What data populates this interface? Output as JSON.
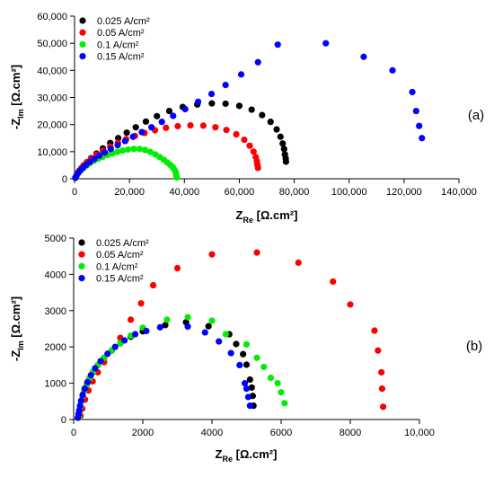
{
  "chart_data": [
    {
      "type": "scatter",
      "panel_label": "(a)",
      "xlabel": "Z",
      "xlabel_sub": "Re",
      "xlabel_tail": " [Ω.cm²]",
      "ylabel_prefix": "-Z",
      "ylabel_sub": "Im",
      "ylabel_tail": " [Ω.cm²]",
      "xlim": [
        0,
        140000
      ],
      "ylim": [
        0,
        60000
      ],
      "xticks": [
        0,
        20000,
        40000,
        60000,
        80000,
        100000,
        120000,
        140000
      ],
      "yticks": [
        0,
        10000,
        20000,
        30000,
        40000,
        50000,
        60000
      ],
      "xtick_labels": [
        "0",
        "20,000",
        "40,000",
        "60,000",
        "80,000",
        "100,000",
        "120,000",
        "140,000"
      ],
      "ytick_labels": [
        "0",
        "10,000",
        "20,000",
        "30,000",
        "40,000",
        "50,000",
        "60,000"
      ],
      "legend_position": "top-left",
      "series": [
        {
          "name": "0.025 A/cm²",
          "color": "#000000",
          "points": [
            [
              300,
              300
            ],
            [
              600,
              1000
            ],
            [
              1000,
              1800
            ],
            [
              1600,
              2800
            ],
            [
              2400,
              3800
            ],
            [
              3300,
              4900
            ],
            [
              4500,
              6100
            ],
            [
              6000,
              7600
            ],
            [
              8000,
              9300
            ],
            [
              10300,
              11200
            ],
            [
              13000,
              13200
            ],
            [
              15900,
              15000
            ],
            [
              19000,
              17000
            ],
            [
              22300,
              19000
            ],
            [
              26000,
              21100
            ],
            [
              30000,
              23100
            ],
            [
              34500,
              25000
            ],
            [
              39400,
              26500
            ],
            [
              44700,
              27400
            ],
            [
              50000,
              27800
            ],
            [
              55000,
              27700
            ],
            [
              60000,
              26900
            ],
            [
              64500,
              25500
            ],
            [
              68300,
              23500
            ],
            [
              71400,
              21000
            ],
            [
              73600,
              18200
            ],
            [
              75000,
              15500
            ],
            [
              75800,
              13000
            ],
            [
              76300,
              11000
            ],
            [
              76600,
              9000
            ],
            [
              76900,
              7500
            ],
            [
              77000,
              6300
            ]
          ]
        },
        {
          "name": "0.05 A/cm²",
          "color": "#ff0000",
          "points": [
            [
              300,
              300
            ],
            [
              600,
              1000
            ],
            [
              1000,
              1800
            ],
            [
              1600,
              2800
            ],
            [
              2400,
              3800
            ],
            [
              3300,
              4900
            ],
            [
              4500,
              6100
            ],
            [
              6000,
              7400
            ],
            [
              8000,
              8900
            ],
            [
              10300,
              10400
            ],
            [
              13000,
              11900
            ],
            [
              15800,
              13300
            ],
            [
              18800,
              14600
            ],
            [
              22000,
              15800
            ],
            [
              25500,
              16900
            ],
            [
              29300,
              17900
            ],
            [
              33300,
              18800
            ],
            [
              37600,
              19400
            ],
            [
              42200,
              19700
            ],
            [
              46900,
              19600
            ],
            [
              51300,
              19000
            ],
            [
              55300,
              18000
            ],
            [
              58900,
              16400
            ],
            [
              61800,
              14400
            ],
            [
              63800,
              12200
            ],
            [
              65200,
              10000
            ],
            [
              66000,
              8000
            ],
            [
              66400,
              6500
            ],
            [
              66600,
              5200
            ],
            [
              66800,
              4000
            ]
          ]
        },
        {
          "name": "0.1 A/cm²",
          "color": "#00ee00",
          "points": [
            [
              300,
              300
            ],
            [
              600,
              900
            ],
            [
              1000,
              1600
            ],
            [
              1600,
              2400
            ],
            [
              2400,
              3200
            ],
            [
              3300,
              4000
            ],
            [
              4400,
              4900
            ],
            [
              5600,
              5800
            ],
            [
              7000,
              6600
            ],
            [
              8600,
              7400
            ],
            [
              10200,
              8100
            ],
            [
              12000,
              8800
            ],
            [
              13800,
              9400
            ],
            [
              15600,
              9900
            ],
            [
              17500,
              10400
            ],
            [
              19500,
              10800
            ],
            [
              21600,
              11000
            ],
            [
              23700,
              11000
            ],
            [
              25700,
              10600
            ],
            [
              27600,
              9900
            ],
            [
              29400,
              9000
            ],
            [
              31000,
              8000
            ],
            [
              32500,
              7000
            ],
            [
              33800,
              6000
            ],
            [
              34900,
              5100
            ],
            [
              35800,
              4200
            ],
            [
              36400,
              3300
            ],
            [
              36800,
              2500
            ],
            [
              37000,
              1700
            ],
            [
              37100,
              1000
            ],
            [
              37200,
              500
            ]
          ]
        },
        {
          "name": "0.15 A/cm²",
          "color": "#0000ff",
          "points": [
            [
              300,
              400
            ],
            [
              700,
              1200
            ],
            [
              1300,
              2100
            ],
            [
              2000,
              3000
            ],
            [
              3000,
              4000
            ],
            [
              4200,
              5100
            ],
            [
              5600,
              6200
            ],
            [
              7200,
              7300
            ],
            [
              9000,
              8500
            ],
            [
              11000,
              9700
            ],
            [
              13200,
              11000
            ],
            [
              15700,
              12400
            ],
            [
              18400,
              13900
            ],
            [
              21300,
              15500
            ],
            [
              24500,
              17200
            ],
            [
              28000,
              19000
            ],
            [
              31800,
              21000
            ],
            [
              35900,
              23200
            ],
            [
              40300,
              25700
            ],
            [
              45000,
              28400
            ],
            [
              49900,
              31300
            ],
            [
              55000,
              34600
            ],
            [
              60700,
              38500
            ],
            [
              66800,
              43000
            ],
            [
              74000,
              49500
            ],
            [
              91500,
              50000
            ],
            [
              105300,
              45000
            ],
            [
              115800,
              40000
            ],
            [
              123000,
              32000
            ],
            [
              124400,
              25000
            ],
            [
              125500,
              19500
            ],
            [
              126500,
              15000
            ]
          ]
        }
      ]
    },
    {
      "type": "scatter",
      "panel_label": "(b)",
      "xlabel": "Z",
      "xlabel_sub": "Re",
      "xlabel_tail": " [Ω.cm²]",
      "ylabel_prefix": "-Z",
      "ylabel_sub": "Im",
      "ylabel_tail": " [Ω.cm²]",
      "xlim": [
        0,
        10000
      ],
      "ylim": [
        0,
        5000
      ],
      "xticks": [
        0,
        2000,
        4000,
        6000,
        8000,
        10000
      ],
      "yticks": [
        0,
        1000,
        2000,
        3000,
        4000,
        5000
      ],
      "xtick_labels": [
        "0",
        "2000",
        "4000",
        "6000",
        "8000",
        "10,000"
      ],
      "ytick_labels": [
        "0",
        "1000",
        "2000",
        "3000",
        "4000",
        "5000"
      ],
      "legend_position": "top-left",
      "series": [
        {
          "name": "0.025 A/cm²",
          "color": "#000000",
          "points": [
            [
              150,
              50
            ],
            [
              170,
              200
            ],
            [
              190,
              350
            ],
            [
              220,
              500
            ],
            [
              260,
              650
            ],
            [
              310,
              800
            ],
            [
              380,
              960
            ],
            [
              460,
              1130
            ],
            [
              560,
              1310
            ],
            [
              700,
              1500
            ],
            [
              880,
              1700
            ],
            [
              1100,
              1900
            ],
            [
              1350,
              2100
            ],
            [
              1650,
              2280
            ],
            [
              2000,
              2430
            ],
            [
              2650,
              2600
            ],
            [
              3250,
              2680
            ],
            [
              3900,
              2570
            ],
            [
              4500,
              2350
            ],
            [
              4700,
              2080
            ],
            [
              4900,
              1800
            ],
            [
              5000,
              1510
            ],
            [
              5100,
              1100
            ],
            [
              5150,
              880
            ],
            [
              5180,
              650
            ],
            [
              5200,
              380
            ]
          ]
        },
        {
          "name": "0.05 A/cm²",
          "color": "#ff0000",
          "points": [
            [
              200,
              100
            ],
            [
              250,
              300
            ],
            [
              330,
              550
            ],
            [
              430,
              800
            ],
            [
              550,
              1050
            ],
            [
              700,
              1300
            ],
            [
              880,
              1580
            ],
            [
              1100,
              1900
            ],
            [
              1350,
              2250
            ],
            [
              1650,
              2750
            ],
            [
              1950,
              3200
            ],
            [
              2300,
              3700
            ],
            [
              3000,
              4170
            ],
            [
              4000,
              4550
            ],
            [
              5300,
              4600
            ],
            [
              6500,
              4320
            ],
            [
              7500,
              3800
            ],
            [
              8000,
              3170
            ],
            [
              8700,
              2450
            ],
            [
              8800,
              1900
            ],
            [
              8900,
              1300
            ],
            [
              8920,
              850
            ],
            [
              8950,
              350
            ]
          ]
        },
        {
          "name": "0.1 A/cm²",
          "color": "#00ee00",
          "points": [
            [
              150,
              50
            ],
            [
              170,
              200
            ],
            [
              190,
              350
            ],
            [
              220,
              500
            ],
            [
              260,
              650
            ],
            [
              310,
              800
            ],
            [
              380,
              960
            ],
            [
              460,
              1130
            ],
            [
              560,
              1310
            ],
            [
              700,
              1500
            ],
            [
              880,
              1700
            ],
            [
              1100,
              1900
            ],
            [
              1350,
              2100
            ],
            [
              1650,
              2310
            ],
            [
              2000,
              2530
            ],
            [
              2700,
              2750
            ],
            [
              3300,
              2820
            ],
            [
              4000,
              2720
            ],
            [
              4400,
              2350
            ],
            [
              5000,
              2070
            ],
            [
              5300,
              1700
            ],
            [
              5500,
              1450
            ],
            [
              5700,
              1150
            ],
            [
              5900,
              1000
            ],
            [
              6000,
              750
            ],
            [
              6100,
              450
            ]
          ]
        },
        {
          "name": "0.15 A/cm²",
          "color": "#0000ff",
          "points": [
            [
              120,
              50
            ],
            [
              140,
              150
            ],
            [
              160,
              250
            ],
            [
              185,
              380
            ],
            [
              215,
              520
            ],
            [
              260,
              680
            ],
            [
              320,
              850
            ],
            [
              400,
              1030
            ],
            [
              500,
              1220
            ],
            [
              620,
              1410
            ],
            [
              780,
              1610
            ],
            [
              980,
              1810
            ],
            [
              1200,
              2000
            ],
            [
              1470,
              2180
            ],
            [
              1780,
              2350
            ],
            [
              2100,
              2440
            ],
            [
              2500,
              2540
            ],
            [
              3300,
              2560
            ],
            [
              3800,
              2400
            ],
            [
              4200,
              2150
            ],
            [
              4550,
              1830
            ],
            [
              4800,
              1500
            ],
            [
              4950,
              1000
            ],
            [
              5000,
              850
            ],
            [
              5050,
              620
            ],
            [
              5100,
              380
            ]
          ]
        }
      ]
    }
  ]
}
